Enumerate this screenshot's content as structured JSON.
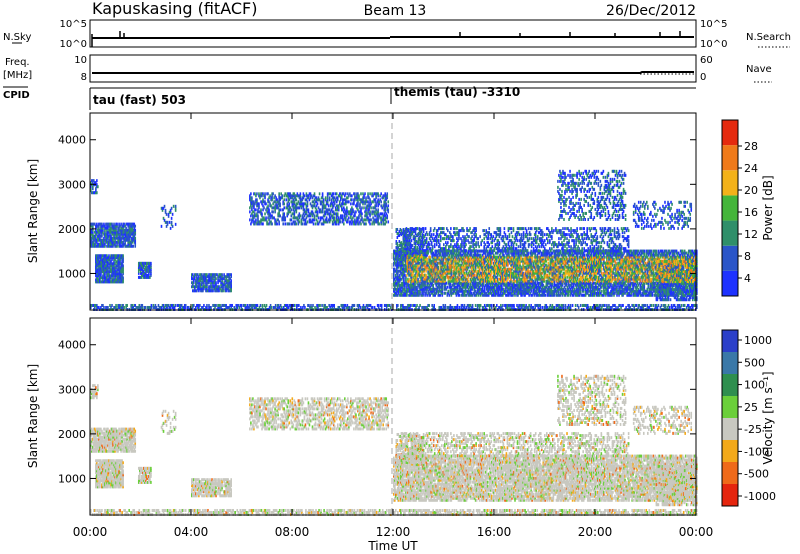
{
  "header": {
    "station": "Kapuskasing (fitACF)",
    "beam": "Beam 13",
    "date": "26/Dec/2012"
  },
  "status_panels": {
    "nsky_label": "N.Sky",
    "nsky_ticks": [
      "10^5",
      "10^0"
    ],
    "nsearch_label": "N.Search",
    "nsearch_ticks": [
      "10^5",
      "10^0"
    ],
    "freq_label": "Freq.",
    "freq_unit": "[MHz]",
    "freq_ticks": [
      "10",
      "8"
    ],
    "nave_label": "Nave",
    "nave_ticks": [
      "60",
      "0"
    ],
    "cpid_label": "CPID",
    "cpid_left": "tau (fast) 503",
    "cpid_right": "themis (tau) -3310"
  },
  "chart_data": [
    {
      "type": "heatmap",
      "title": "",
      "xlabel": "Time UT",
      "ylabel": "Slant Range [km]",
      "colorbar_label": "Power [dB]",
      "colorbar_ticks": [
        "4",
        "8",
        "12",
        "16",
        "20",
        "24",
        "28"
      ],
      "colorbar_colors": [
        "#1e32ff",
        "#2a55c8",
        "#2f8f6a",
        "#44b53a",
        "#f3b21a",
        "#ef7a1a",
        "#e52a0e"
      ],
      "ylim": [
        180,
        4600
      ],
      "y_ticks": [
        1000,
        2000,
        3000,
        4000
      ],
      "x_range_hours": [
        0,
        24
      ],
      "x_ticks": [
        "00:00",
        "04:00",
        "08:00",
        "12:00",
        "16:00",
        "20:00",
        "00:00"
      ]
    },
    {
      "type": "heatmap",
      "title": "",
      "xlabel": "Time UT",
      "ylabel": "Slant Range [km]",
      "colorbar_label": "Velocity [m s⁻¹]",
      "colorbar_ticks": [
        "1000",
        "500",
        "100",
        "25",
        "-25",
        "-100",
        "-500",
        "-1000"
      ],
      "colorbar_colors": [
        "#2b3fc9",
        "#3a78a8",
        "#2f8f4f",
        "#6bcf3a",
        "#c8c8c0",
        "#f3a91a",
        "#ef6a1a",
        "#e5250e"
      ],
      "ylim": [
        180,
        4600
      ],
      "y_ticks": [
        1000,
        2000,
        3000,
        4000
      ],
      "x_range_hours": [
        0,
        24
      ],
      "x_ticks": [
        "00:00",
        "04:00",
        "08:00",
        "12:00",
        "16:00",
        "20:00",
        "00:00"
      ]
    }
  ]
}
